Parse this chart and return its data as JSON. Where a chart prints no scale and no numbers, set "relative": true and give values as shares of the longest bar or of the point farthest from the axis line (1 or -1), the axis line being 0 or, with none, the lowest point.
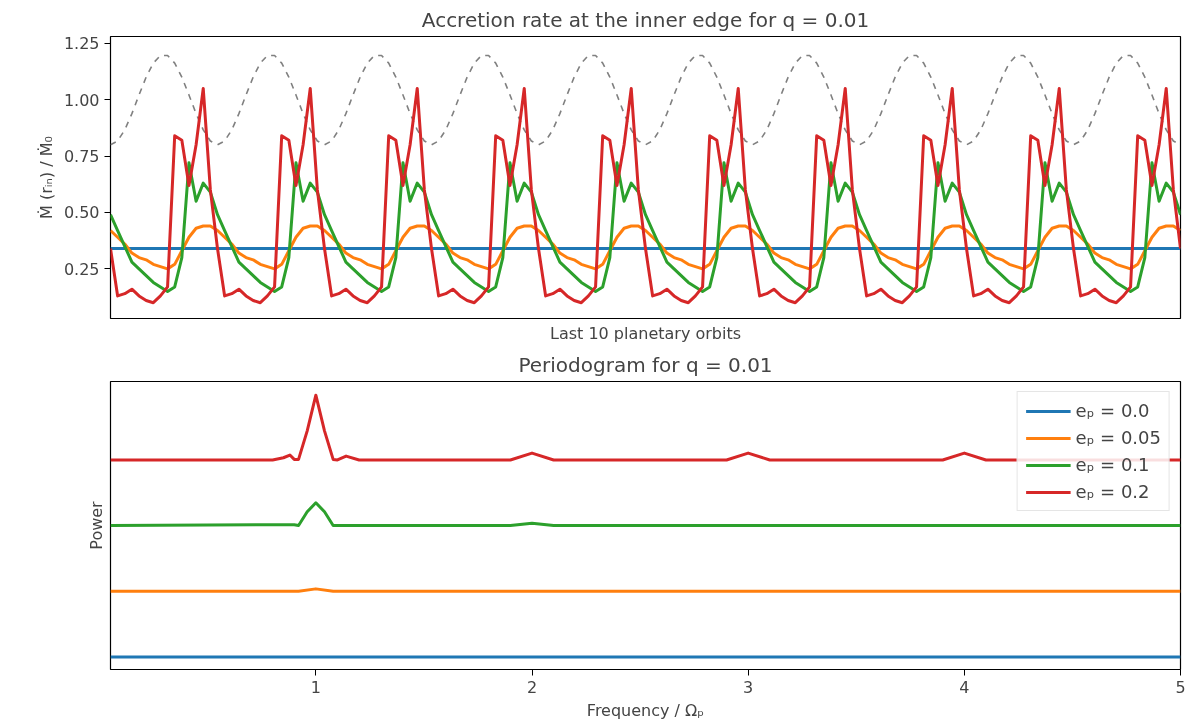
{
  "chart_data": [
    {
      "type": "line",
      "title": "Accretion rate at the inner edge for q = 0.01",
      "xlabel": "Last 10 planetary orbits",
      "ylabel": "Ṁ (rᵢₙ) / Ṁ₀",
      "ylim": [
        0.03,
        1.28
      ],
      "categories": [
        null,
        null,
        null,
        null,
        null,
        null,
        null,
        null,
        null,
        null,
        null,
        null,
        null,
        null,
        null,
        null,
        null,
        null,
        null,
        null,
        null,
        null,
        null,
        null,
        null,
        null,
        null,
        null,
        null,
        null,
        null,
        null,
        null,
        null,
        null,
        null,
        null,
        null,
        null,
        null,
        null,
        null,
        null,
        null,
        null,
        null,
        null,
        null,
        null,
        null,
        null,
        null,
        null,
        null,
        null,
        null,
        null,
        null,
        null,
        null,
        null,
        null,
        null,
        null,
        null,
        null,
        null,
        null,
        null,
        null,
        null,
        null,
        null,
        null,
        null,
        null,
        null,
        null,
        null,
        null,
        null,
        null,
        null,
        null,
        null,
        null,
        null,
        null,
        null,
        null,
        null,
        null,
        null,
        null,
        null,
        null,
        null,
        null,
        null,
        null,
        null,
        null,
        null,
        null,
        null,
        null,
        null,
        null,
        null,
        null,
        null,
        null,
        null,
        null,
        null,
        null,
        null,
        null,
        null,
        null,
        null,
        null,
        null,
        null,
        null,
        null,
        null,
        null,
        null,
        null,
        null,
        null,
        null,
        null,
        null,
        null,
        null,
        null,
        null,
        null,
        null,
        null,
        null,
        null,
        null,
        null,
        null,
        null,
        null,
        null,
        null
      ],
      "yticks": [
        {
          "value": 0.25,
          "label": "0.25"
        },
        {
          "value": 0.5,
          "label": "0.50"
        },
        {
          "value": 0.75,
          "label": "0.75"
        },
        {
          "value": 1.0,
          "label": "1.00"
        },
        {
          "value": 1.25,
          "label": "1.25"
        }
      ],
      "tick_labels": "y",
      "series": [
        {
          "color": "#808080",
          "line_style": "dashed",
          "values": [
            0.8,
            0.817,
            0.866,
            0.938,
            1.021,
            1.1,
            1.162,
            1.196,
            1.196,
            1.162,
            1.1,
            1.021,
            0.938,
            0.866,
            0.817,
            0.8,
            0.817,
            0.866,
            0.938,
            1.021,
            1.1,
            1.162,
            1.196,
            1.196,
            1.162,
            1.1,
            1.021,
            0.938,
            0.866,
            0.817,
            0.8,
            0.817,
            0.866,
            0.938,
            1.021,
            1.1,
            1.162,
            1.196,
            1.196,
            1.162,
            1.1,
            1.021,
            0.938,
            0.866,
            0.817,
            0.8,
            0.817,
            0.866,
            0.938,
            1.021,
            1.1,
            1.162,
            1.196,
            1.196,
            1.162,
            1.1,
            1.021,
            0.938,
            0.866,
            0.817,
            0.8,
            0.817,
            0.866,
            0.938,
            1.021,
            1.1,
            1.162,
            1.196,
            1.196,
            1.162,
            1.1,
            1.021,
            0.938,
            0.866,
            0.817,
            0.8,
            0.817,
            0.866,
            0.938,
            1.021,
            1.1,
            1.162,
            1.196,
            1.196,
            1.162,
            1.1,
            1.021,
            0.938,
            0.866,
            0.817,
            0.8,
            0.817,
            0.866,
            0.938,
            1.021,
            1.1,
            1.162,
            1.196,
            1.196,
            1.162,
            1.1,
            1.021,
            0.938,
            0.866,
            0.817,
            0.8,
            0.817,
            0.866,
            0.938,
            1.021,
            1.1,
            1.162,
            1.196,
            1.196,
            1.162,
            1.1,
            1.021,
            0.938,
            0.866,
            0.817,
            0.8,
            0.817,
            0.866,
            0.938,
            1.021,
            1.1,
            1.162,
            1.196,
            1.196,
            1.162,
            1.1,
            1.021,
            0.938,
            0.866,
            0.817,
            0.8,
            0.817,
            0.866,
            0.938,
            1.021,
            1.1,
            1.162,
            1.196,
            1.196,
            1.162,
            1.1,
            1.021,
            0.938,
            0.866,
            0.817,
            0.8
          ]
        },
        {
          "color": "#1f77b4",
          "values": [
            0.34,
            0.34,
            0.34,
            0.34,
            0.34,
            0.34,
            0.34,
            0.34,
            0.34,
            0.34,
            0.34,
            0.34,
            0.34,
            0.34,
            0.34,
            0.34,
            0.34,
            0.34,
            0.34,
            0.34,
            0.34,
            0.34,
            0.34,
            0.34,
            0.34,
            0.34,
            0.34,
            0.34,
            0.34,
            0.34,
            0.34,
            0.34,
            0.34,
            0.34,
            0.34,
            0.34,
            0.34,
            0.34,
            0.34,
            0.34,
            0.34,
            0.34,
            0.34,
            0.34,
            0.34,
            0.34,
            0.34,
            0.34,
            0.34,
            0.34,
            0.34,
            0.34,
            0.34,
            0.34,
            0.34,
            0.34,
            0.34,
            0.34,
            0.34,
            0.34,
            0.34,
            0.34,
            0.34,
            0.34,
            0.34,
            0.34,
            0.34,
            0.34,
            0.34,
            0.34,
            0.34,
            0.34,
            0.34,
            0.34,
            0.34,
            0.34,
            0.34,
            0.34,
            0.34,
            0.34,
            0.34,
            0.34,
            0.34,
            0.34,
            0.34,
            0.34,
            0.34,
            0.34,
            0.34,
            0.34,
            0.34,
            0.34,
            0.34,
            0.34,
            0.34,
            0.34,
            0.34,
            0.34,
            0.34,
            0.34,
            0.34,
            0.34,
            0.34,
            0.34,
            0.34,
            0.34,
            0.34,
            0.34,
            0.34,
            0.34,
            0.34,
            0.34,
            0.34,
            0.34,
            0.34,
            0.34,
            0.34,
            0.34,
            0.34,
            0.34,
            0.34,
            0.34,
            0.34,
            0.34,
            0.34,
            0.34,
            0.34,
            0.34,
            0.34,
            0.34,
            0.34,
            0.34,
            0.34,
            0.34,
            0.34,
            0.34,
            0.34,
            0.34,
            0.34,
            0.34,
            0.34,
            0.34,
            0.34,
            0.34,
            0.34,
            0.34,
            0.34,
            0.34,
            0.34,
            0.34,
            0.34
          ]
        },
        {
          "color": "#ff7f0e",
          "values": [
            0.42,
            0.39,
            0.36,
            0.32,
            0.3,
            0.29,
            0.27,
            0.26,
            0.25,
            0.27,
            0.33,
            0.39,
            0.43,
            0.44,
            0.44,
            0.42,
            0.39,
            0.36,
            0.32,
            0.3,
            0.29,
            0.27,
            0.26,
            0.25,
            0.27,
            0.33,
            0.39,
            0.43,
            0.44,
            0.44,
            0.42,
            0.39,
            0.36,
            0.32,
            0.3,
            0.29,
            0.27,
            0.26,
            0.25,
            0.27,
            0.33,
            0.39,
            0.43,
            0.44,
            0.44,
            0.42,
            0.39,
            0.36,
            0.32,
            0.3,
            0.29,
            0.27,
            0.26,
            0.25,
            0.27,
            0.33,
            0.39,
            0.43,
            0.44,
            0.44,
            0.42,
            0.39,
            0.36,
            0.32,
            0.3,
            0.29,
            0.27,
            0.26,
            0.25,
            0.27,
            0.33,
            0.39,
            0.43,
            0.44,
            0.44,
            0.42,
            0.39,
            0.36,
            0.32,
            0.3,
            0.29,
            0.27,
            0.26,
            0.25,
            0.27,
            0.33,
            0.39,
            0.43,
            0.44,
            0.44,
            0.42,
            0.39,
            0.36,
            0.32,
            0.3,
            0.29,
            0.27,
            0.26,
            0.25,
            0.27,
            0.33,
            0.39,
            0.43,
            0.44,
            0.44,
            0.42,
            0.39,
            0.36,
            0.32,
            0.3,
            0.29,
            0.27,
            0.26,
            0.25,
            0.27,
            0.33,
            0.39,
            0.43,
            0.44,
            0.44,
            0.42,
            0.39,
            0.36,
            0.32,
            0.3,
            0.29,
            0.27,
            0.26,
            0.25,
            0.27,
            0.33,
            0.39,
            0.43,
            0.44,
            0.44,
            0.42,
            0.39,
            0.36,
            0.32,
            0.3,
            0.29,
            0.27,
            0.26,
            0.25,
            0.27,
            0.33,
            0.39,
            0.43,
            0.44,
            0.44,
            0.42
          ]
        },
        {
          "color": "#2ca02c",
          "values": [
            0.49,
            0.42,
            0.35,
            0.28,
            0.25,
            0.22,
            0.19,
            0.17,
            0.15,
            0.17,
            0.3,
            0.72,
            0.55,
            0.63,
            0.59,
            0.49,
            0.42,
            0.35,
            0.28,
            0.25,
            0.22,
            0.19,
            0.17,
            0.15,
            0.17,
            0.3,
            0.72,
            0.55,
            0.63,
            0.59,
            0.49,
            0.42,
            0.35,
            0.28,
            0.25,
            0.22,
            0.19,
            0.17,
            0.15,
            0.17,
            0.3,
            0.72,
            0.55,
            0.63,
            0.59,
            0.49,
            0.42,
            0.35,
            0.28,
            0.25,
            0.22,
            0.19,
            0.17,
            0.15,
            0.17,
            0.3,
            0.72,
            0.55,
            0.63,
            0.59,
            0.49,
            0.42,
            0.35,
            0.28,
            0.25,
            0.22,
            0.19,
            0.17,
            0.15,
            0.17,
            0.3,
            0.72,
            0.55,
            0.63,
            0.59,
            0.49,
            0.42,
            0.35,
            0.28,
            0.25,
            0.22,
            0.19,
            0.17,
            0.15,
            0.17,
            0.3,
            0.72,
            0.55,
            0.63,
            0.59,
            0.49,
            0.42,
            0.35,
            0.28,
            0.25,
            0.22,
            0.19,
            0.17,
            0.15,
            0.17,
            0.3,
            0.72,
            0.55,
            0.63,
            0.59,
            0.49,
            0.42,
            0.35,
            0.28,
            0.25,
            0.22,
            0.19,
            0.17,
            0.15,
            0.17,
            0.3,
            0.72,
            0.55,
            0.63,
            0.59,
            0.49,
            0.42,
            0.35,
            0.28,
            0.25,
            0.22,
            0.19,
            0.17,
            0.15,
            0.17,
            0.3,
            0.72,
            0.55,
            0.63,
            0.59,
            0.49,
            0.42,
            0.35,
            0.28,
            0.25,
            0.22,
            0.19,
            0.17,
            0.15,
            0.17,
            0.3,
            0.72,
            0.55,
            0.63,
            0.59,
            0.49
          ]
        },
        {
          "color": "#d62728",
          "values": [
            0.34,
            0.13,
            0.14,
            0.16,
            0.13,
            0.11,
            0.1,
            0.13,
            0.17,
            0.84,
            0.82,
            0.62,
            0.8,
            1.05,
            0.6,
            0.34,
            0.13,
            0.14,
            0.16,
            0.13,
            0.11,
            0.1,
            0.13,
            0.17,
            0.84,
            0.82,
            0.62,
            0.8,
            1.05,
            0.6,
            0.34,
            0.13,
            0.14,
            0.16,
            0.13,
            0.11,
            0.1,
            0.13,
            0.17,
            0.84,
            0.82,
            0.62,
            0.8,
            1.05,
            0.6,
            0.34,
            0.13,
            0.14,
            0.16,
            0.13,
            0.11,
            0.1,
            0.13,
            0.17,
            0.84,
            0.82,
            0.62,
            0.8,
            1.05,
            0.6,
            0.34,
            0.13,
            0.14,
            0.16,
            0.13,
            0.11,
            0.1,
            0.13,
            0.17,
            0.84,
            0.82,
            0.62,
            0.8,
            1.05,
            0.6,
            0.34,
            0.13,
            0.14,
            0.16,
            0.13,
            0.11,
            0.1,
            0.13,
            0.17,
            0.84,
            0.82,
            0.62,
            0.8,
            1.05,
            0.6,
            0.34,
            0.13,
            0.14,
            0.16,
            0.13,
            0.11,
            0.1,
            0.13,
            0.17,
            0.84,
            0.82,
            0.62,
            0.8,
            1.05,
            0.6,
            0.34,
            0.13,
            0.14,
            0.16,
            0.13,
            0.11,
            0.1,
            0.13,
            0.17,
            0.84,
            0.82,
            0.62,
            0.8,
            1.05,
            0.6,
            0.34,
            0.13,
            0.14,
            0.16,
            0.13,
            0.11,
            0.1,
            0.13,
            0.17,
            0.84,
            0.82,
            0.62,
            0.8,
            1.05,
            0.6,
            0.34,
            0.13,
            0.14,
            0.16,
            0.13,
            0.11,
            0.1,
            0.13,
            0.17,
            0.84,
            0.82,
            0.62,
            0.8,
            1.05,
            0.6,
            0.34
          ]
        }
      ]
    },
    {
      "type": "line",
      "title": "Periodogram for q = 0.01",
      "xlabel": "Frequency / Ωₚ",
      "ylabel": "Power",
      "relative": true,
      "xlim": [
        0.05,
        5
      ],
      "xticks": [
        1,
        2,
        3,
        4,
        5
      ],
      "tick_labels": "x",
      "legend": "top right",
      "series": [
        {
          "name": "eₚ = 0.0",
          "color": "#1f77b4",
          "x": [
            0.05,
            5
          ],
          "values": [
            0.046,
            0.046
          ]
        },
        {
          "name": "eₚ = 0.05",
          "color": "#ff7f0e",
          "x": [
            0.05,
            0.92,
            1.0,
            1.08,
            5
          ],
          "values": [
            0.285,
            0.285,
            0.294,
            0.285,
            0.285
          ]
        },
        {
          "name": "eₚ = 0.1",
          "color": "#2ca02c",
          "x": [
            0.05,
            0.9,
            0.92,
            0.96,
            1.0,
            1.04,
            1.08,
            1.1,
            1.9,
            2.0,
            2.1,
            5
          ],
          "values": [
            0.525,
            0.528,
            0.525,
            0.575,
            0.608,
            0.575,
            0.525,
            0.525,
            0.525,
            0.533,
            0.525,
            0.525
          ]
        },
        {
          "name": "eₚ = 0.2",
          "color": "#d62728",
          "x": [
            0.05,
            0.8,
            0.85,
            0.88,
            0.9,
            0.92,
            0.96,
            1.0,
            1.04,
            1.08,
            1.1,
            1.14,
            1.2,
            1.9,
            2.0,
            2.1,
            2.9,
            3.0,
            3.1,
            3.9,
            4.0,
            4.1,
            5
          ],
          "values": [
            0.764,
            0.764,
            0.772,
            0.782,
            0.766,
            0.766,
            0.87,
            1.0,
            0.87,
            0.766,
            0.764,
            0.778,
            0.764,
            0.764,
            0.789,
            0.764,
            0.764,
            0.789,
            0.764,
            0.764,
            0.789,
            0.764,
            0.764
          ]
        }
      ]
    }
  ]
}
